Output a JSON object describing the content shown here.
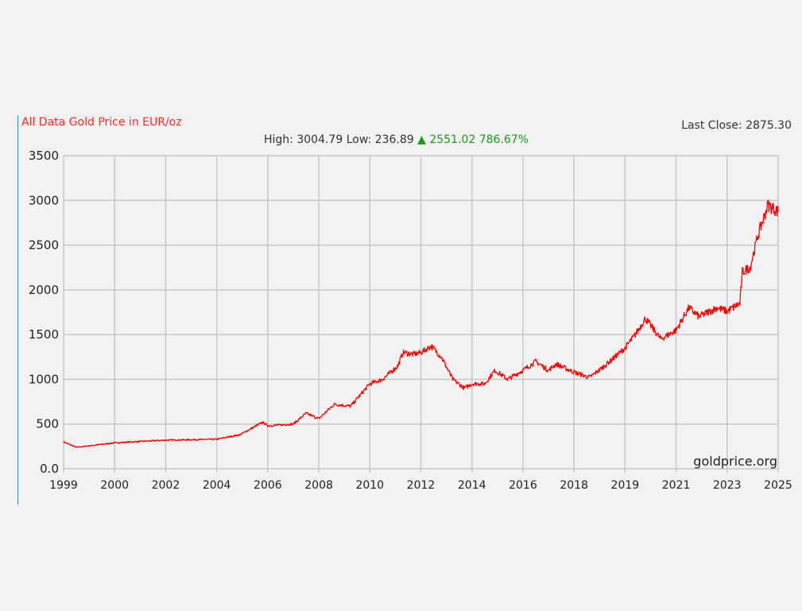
{
  "chart_data": {
    "type": "line",
    "title": "All Data Gold Price in EUR/oz",
    "last_close_label": "Last Close: 2875.30",
    "high_label": "High: 3004.79",
    "low_label": "Low: 236.89",
    "change_icon": "triangle-up-icon",
    "change_value": "2551.02",
    "change_percent": "786.67%",
    "watermark": "goldprice.org",
    "xlabel": "",
    "ylabel": "",
    "x_tick_labels": [
      "1999",
      "2000",
      "2002",
      "2004",
      "2006",
      "2008",
      "2010",
      "2012",
      "2014",
      "2016",
      "2018",
      "2019",
      "2021",
      "2023",
      "2025"
    ],
    "y_tick_labels": [
      "0.0",
      "500",
      "1000",
      "1500",
      "2000",
      "2500",
      "3000",
      "3500"
    ],
    "ylim": [
      0,
      3500
    ],
    "grid": true,
    "colors": {
      "line": "#ff0000",
      "change_up": "#1a9a1a",
      "title": "#ff2a2a"
    },
    "series": [
      {
        "x": [
          1999,
          1999.25,
          2000,
          2002,
          2004,
          2004.9,
          2005.8,
          2006,
          2007,
          2007.5,
          2008,
          2008.6,
          2009.25,
          2010,
          2010.5,
          2011.1,
          2011.3,
          2011.7,
          2012,
          2012.4,
          2012.8,
          2013.25,
          2013.7,
          2014,
          2014.5,
          2014.9,
          2015.4,
          2016,
          2016.5,
          2017,
          2017.3,
          2018,
          2018.3,
          2018.6,
          2019,
          2019.4,
          2019.8,
          2020.4,
          2021,
          2021.5,
          2021.9,
          2022.6,
          2023,
          2023.5,
          2023.6,
          2023.9,
          2024.2,
          2024.6,
          2025
        ],
        "y": [
          300,
          240,
          290,
          320,
          330,
          380,
          520,
          480,
          500,
          620,
          560,
          720,
          700,
          950,
          1000,
          1150,
          1300,
          1280,
          1300,
          1370,
          1250,
          1000,
          900,
          950,
          950,
          1100,
          1000,
          1100,
          1200,
          1100,
          1170,
          1080,
          1020,
          1150,
          1350,
          1500,
          1680,
          1450,
          1550,
          1800,
          1700,
          1800,
          1760,
          1850,
          2200,
          2250,
          2600,
          2950,
          2875
        ]
      }
    ]
  }
}
